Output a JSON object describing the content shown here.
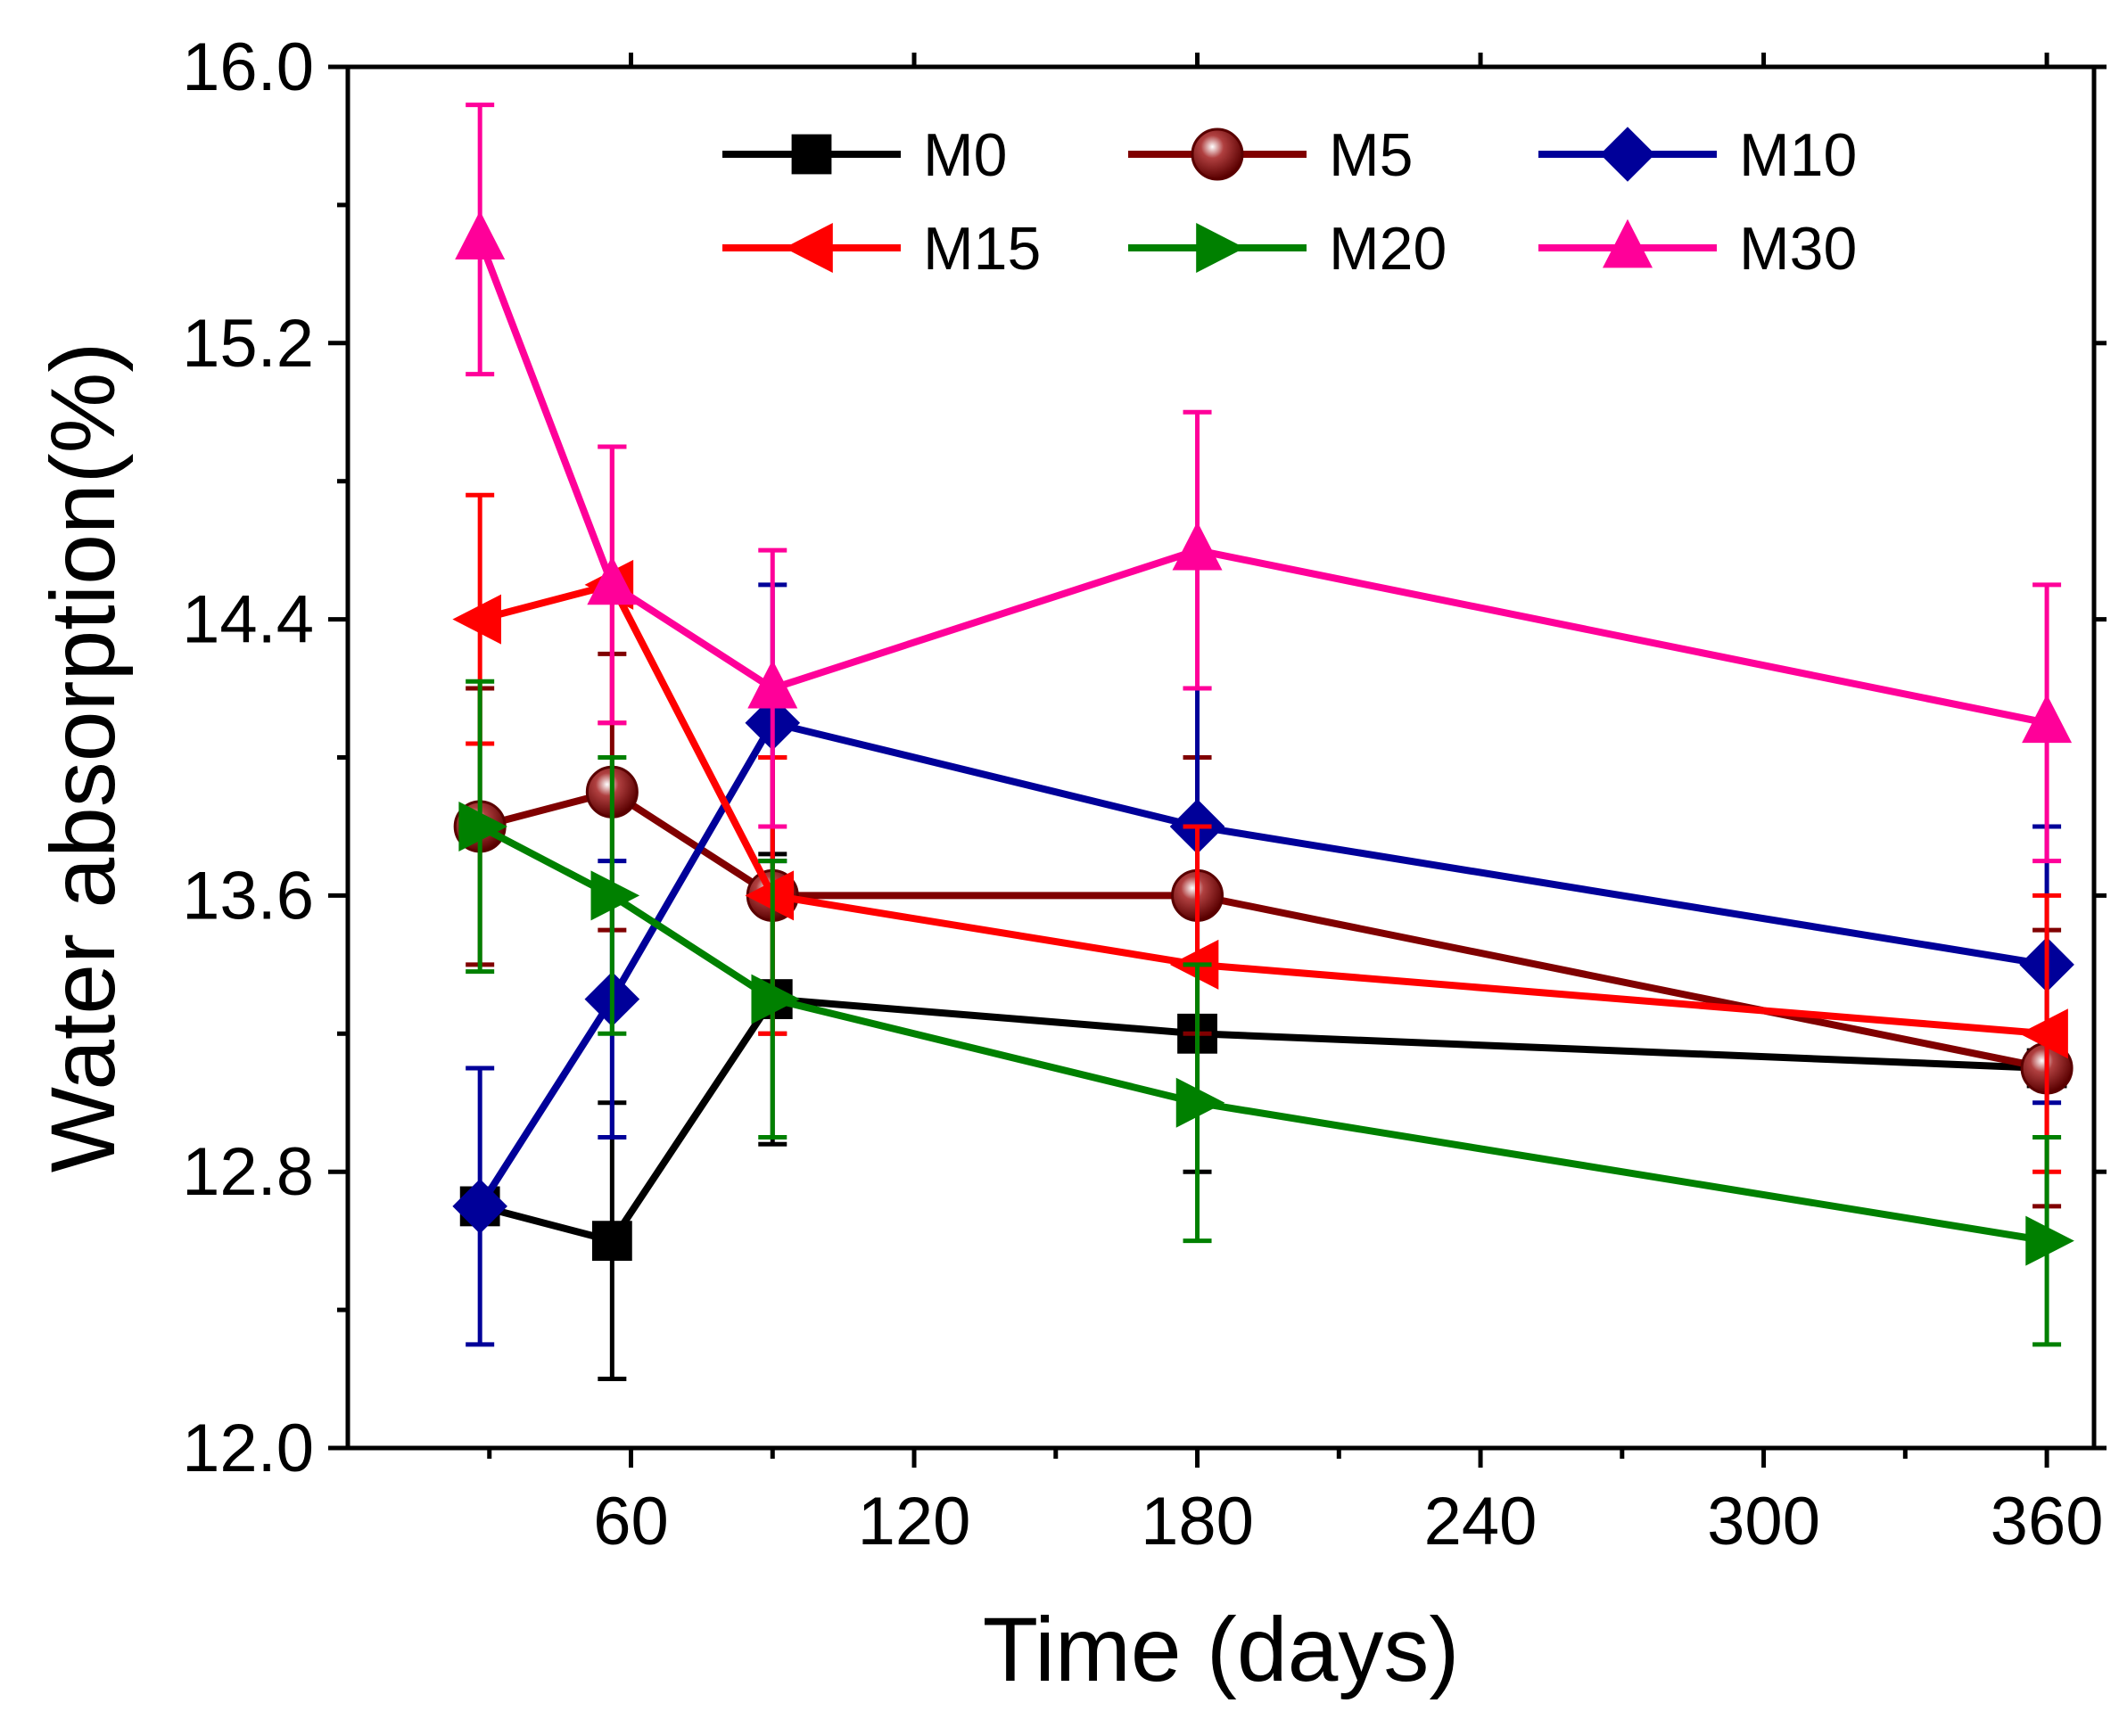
{
  "chart_data": {
    "type": "line",
    "xlabel": "Time (days)",
    "ylabel": "Water absorption(%)",
    "xlim": [
      0,
      370
    ],
    "ylim": [
      12.0,
      16.0
    ],
    "x_ticks": [
      {
        "value": 60,
        "label": "60"
      },
      {
        "value": 120,
        "label": "120"
      },
      {
        "value": 180,
        "label": "180"
      },
      {
        "value": 240,
        "label": "240"
      },
      {
        "value": 300,
        "label": "300"
      },
      {
        "value": 360,
        "label": "360"
      }
    ],
    "x_minor_ticks": [
      30,
      90,
      150,
      210,
      270,
      330
    ],
    "y_ticks": [
      {
        "value": 12.0,
        "label": "12.0"
      },
      {
        "value": 12.8,
        "label": "12.8"
      },
      {
        "value": 13.6,
        "label": "13.6"
      },
      {
        "value": 14.4,
        "label": "14.4"
      },
      {
        "value": 15.2,
        "label": "15.2"
      },
      {
        "value": 16.0,
        "label": "16.0"
      }
    ],
    "y_minor_ticks": [
      12.4,
      13.2,
      14.0,
      14.8,
      15.6
    ],
    "legend_position": "top-right",
    "series": [
      {
        "name": "M0",
        "color": "#000000",
        "marker": "square",
        "x": [
          28,
          56,
          90,
          180,
          360
        ],
        "y": [
          12.7,
          12.6,
          13.3,
          13.2,
          13.1
        ],
        "err": [
          0.0,
          0.4,
          0.42,
          0.4,
          0.0
        ]
      },
      {
        "name": "M5",
        "color": "#800000",
        "marker": "sphere",
        "x": [
          28,
          56,
          90,
          180,
          360
        ],
        "y": [
          13.8,
          13.9,
          13.6,
          13.6,
          13.1
        ],
        "err": [
          0.4,
          0.4,
          0.4,
          0.4,
          0.4
        ]
      },
      {
        "name": "M10",
        "color": "#000099",
        "marker": "diamond",
        "x": [
          28,
          56,
          90,
          180,
          360
        ],
        "y": [
          12.7,
          13.3,
          14.1,
          13.8,
          13.4
        ],
        "err": [
          0.4,
          0.4,
          0.4,
          0.4,
          0.4
        ]
      },
      {
        "name": "M15",
        "color": "#ff0000",
        "marker": "triangle-left",
        "x": [
          28,
          56,
          90,
          180,
          360
        ],
        "y": [
          14.4,
          14.5,
          13.6,
          13.4,
          13.2
        ],
        "err": [
          0.36,
          0.4,
          0.4,
          0.4,
          0.4
        ]
      },
      {
        "name": "M20",
        "color": "#008000",
        "marker": "triangle-right",
        "x": [
          28,
          56,
          90,
          180,
          360
        ],
        "y": [
          13.8,
          13.6,
          13.3,
          13.0,
          12.6
        ],
        "err": [
          0.42,
          0.4,
          0.4,
          0.4,
          0.3
        ]
      },
      {
        "name": "M30",
        "color": "#ff0099",
        "marker": "triangle-up",
        "x": [
          28,
          56,
          90,
          180,
          360
        ],
        "y": [
          15.5,
          14.5,
          14.2,
          14.6,
          14.1
        ],
        "err": [
          0.39,
          0.4,
          0.4,
          0.4,
          0.4
        ]
      }
    ]
  }
}
